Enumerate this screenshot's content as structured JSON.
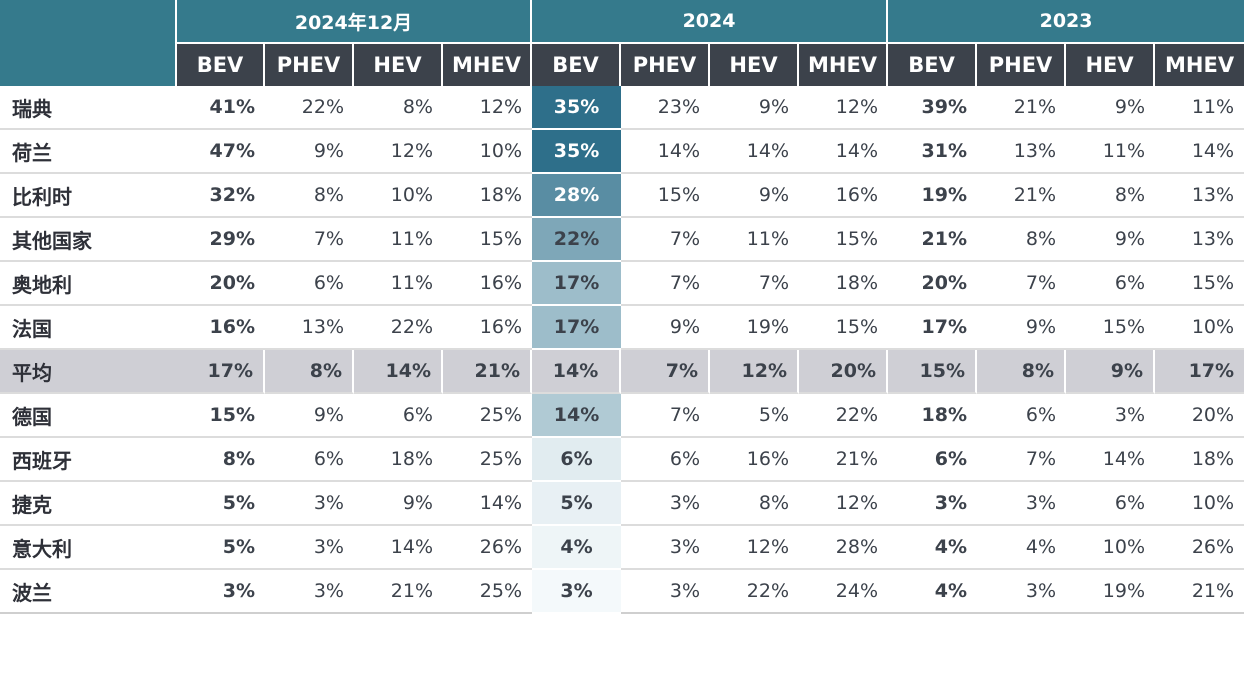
{
  "chart_data": {
    "type": "table",
    "groups": [
      "2024年12月",
      "2024",
      "2023"
    ],
    "subheaders": [
      "BEV",
      "PHEV",
      "HEV",
      "MHEV"
    ],
    "rows": [
      {
        "country": "瑞典",
        "values": [
          "41%",
          "22%",
          "8%",
          "12%",
          "35%",
          "23%",
          "9%",
          "12%",
          "39%",
          "21%",
          "9%",
          "11%"
        ],
        "heat": 35
      },
      {
        "country": "荷兰",
        "values": [
          "47%",
          "9%",
          "12%",
          "10%",
          "35%",
          "14%",
          "14%",
          "14%",
          "31%",
          "13%",
          "11%",
          "14%"
        ],
        "heat": 35
      },
      {
        "country": "比利时",
        "values": [
          "32%",
          "8%",
          "10%",
          "18%",
          "28%",
          "15%",
          "9%",
          "16%",
          "19%",
          "21%",
          "8%",
          "13%"
        ],
        "heat": 28
      },
      {
        "country": "其他国家",
        "values": [
          "29%",
          "7%",
          "11%",
          "15%",
          "22%",
          "7%",
          "11%",
          "15%",
          "21%",
          "8%",
          "9%",
          "13%"
        ],
        "heat": 22
      },
      {
        "country": "奥地利",
        "values": [
          "20%",
          "6%",
          "11%",
          "16%",
          "17%",
          "7%",
          "7%",
          "18%",
          "20%",
          "7%",
          "6%",
          "15%"
        ],
        "heat": 17
      },
      {
        "country": "法国",
        "values": [
          "16%",
          "13%",
          "22%",
          "16%",
          "17%",
          "9%",
          "19%",
          "15%",
          "17%",
          "9%",
          "15%",
          "10%"
        ],
        "heat": 17
      },
      {
        "country": "平均",
        "values": [
          "17%",
          "8%",
          "14%",
          "21%",
          "14%",
          "7%",
          "12%",
          "20%",
          "15%",
          "8%",
          "9%",
          "17%"
        ],
        "heat": 14,
        "average": true
      },
      {
        "country": "德国",
        "values": [
          "15%",
          "9%",
          "6%",
          "25%",
          "14%",
          "7%",
          "5%",
          "22%",
          "18%",
          "6%",
          "3%",
          "20%"
        ],
        "heat": 14
      },
      {
        "country": "西班牙",
        "values": [
          "8%",
          "6%",
          "18%",
          "25%",
          "6%",
          "6%",
          "16%",
          "21%",
          "6%",
          "7%",
          "14%",
          "18%"
        ],
        "heat": 6
      },
      {
        "country": "捷克",
        "values": [
          "5%",
          "3%",
          "9%",
          "14%",
          "5%",
          "3%",
          "8%",
          "12%",
          "3%",
          "3%",
          "6%",
          "10%"
        ],
        "heat": 5
      },
      {
        "country": "意大利",
        "values": [
          "5%",
          "3%",
          "14%",
          "26%",
          "4%",
          "3%",
          "12%",
          "28%",
          "4%",
          "4%",
          "10%",
          "26%"
        ],
        "heat": 4
      },
      {
        "country": "波兰",
        "values": [
          "3%",
          "3%",
          "21%",
          "25%",
          "3%",
          "3%",
          "22%",
          "24%",
          "4%",
          "3%",
          "19%",
          "21%"
        ],
        "heat": 3
      }
    ],
    "heat_column": "2024 BEV",
    "colors": {
      "group_header": "#357a8c",
      "sub_header": "#3c424b",
      "average_row": "#cfcfd5",
      "heat_low": "#f4f9fb",
      "heat_high": "#2e6f8a"
    }
  }
}
